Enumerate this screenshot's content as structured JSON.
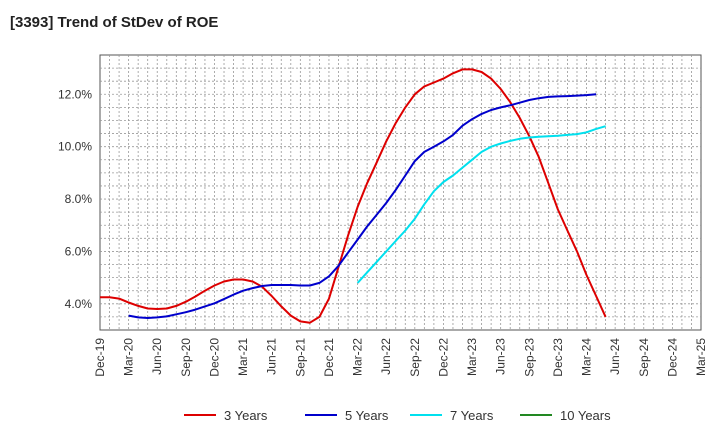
{
  "chart_data": {
    "type": "line",
    "title": "[3393]  Trend of StDev of ROE",
    "x_labels": [
      "Dec-19",
      "Mar-20",
      "Jun-20",
      "Sep-20",
      "Dec-20",
      "Mar-21",
      "Jun-21",
      "Sep-21",
      "Dec-21",
      "Mar-22",
      "Jun-22",
      "Sep-22",
      "Dec-22",
      "Mar-23",
      "Jun-23",
      "Sep-23",
      "Dec-23",
      "Mar-24",
      "Jun-24",
      "Sep-24",
      "Dec-24",
      "Mar-25"
    ],
    "y_ticks": [
      "4.0%",
      "6.0%",
      "8.0%",
      "10.0%",
      "12.0%"
    ],
    "ylim": [
      3.0,
      13.5
    ],
    "grid": true,
    "legend_position": "bottom",
    "series": [
      {
        "name": "3 Years",
        "color": "#dd0000",
        "x_start_index": 0,
        "step": 0.333333,
        "values": [
          4.25,
          4.25,
          4.2,
          4.05,
          3.92,
          3.82,
          3.8,
          3.82,
          3.92,
          4.08,
          4.28,
          4.5,
          4.7,
          4.85,
          4.93,
          4.93,
          4.85,
          4.65,
          4.3,
          3.9,
          3.55,
          3.33,
          3.28,
          3.5,
          4.2,
          5.4,
          6.6,
          7.7,
          8.6,
          9.4,
          10.2,
          10.9,
          11.5,
          12.0,
          12.3,
          12.45,
          12.6,
          12.8,
          12.95,
          12.95,
          12.85,
          12.6,
          12.2,
          11.7,
          11.1,
          10.4,
          9.6,
          8.6,
          7.6,
          6.8,
          6.0,
          5.1,
          4.3,
          3.5
        ]
      },
      {
        "name": "5 Years",
        "color": "#0000cc",
        "x_start_index": 1,
        "step": 0.333333,
        "values": [
          3.55,
          3.48,
          3.46,
          3.48,
          3.52,
          3.6,
          3.68,
          3.78,
          3.9,
          4.02,
          4.18,
          4.35,
          4.5,
          4.6,
          4.68,
          4.72,
          4.72,
          4.72,
          4.7,
          4.7,
          4.8,
          5.05,
          5.45,
          5.95,
          6.45,
          6.95,
          7.4,
          7.85,
          8.35,
          8.9,
          9.45,
          9.8,
          10.0,
          10.2,
          10.45,
          10.8,
          11.05,
          11.25,
          11.4,
          11.5,
          11.58,
          11.68,
          11.78,
          11.85,
          11.9,
          11.92,
          11.93,
          11.95,
          11.97,
          12.0
        ]
      },
      {
        "name": "7 Years",
        "color": "#00e0ee",
        "x_start_index": 9,
        "step": 0.333333,
        "values": [
          4.8,
          5.2,
          5.6,
          6.0,
          6.4,
          6.8,
          7.25,
          7.8,
          8.3,
          8.65,
          8.9,
          9.2,
          9.5,
          9.8,
          10.0,
          10.12,
          10.22,
          10.3,
          10.35,
          10.38,
          10.4,
          10.42,
          10.45,
          10.48,
          10.55,
          10.68,
          10.78
        ]
      },
      {
        "name": "10 Years",
        "color": "#228822",
        "x_start_index": 0,
        "step": 0.333333,
        "values": []
      }
    ]
  }
}
